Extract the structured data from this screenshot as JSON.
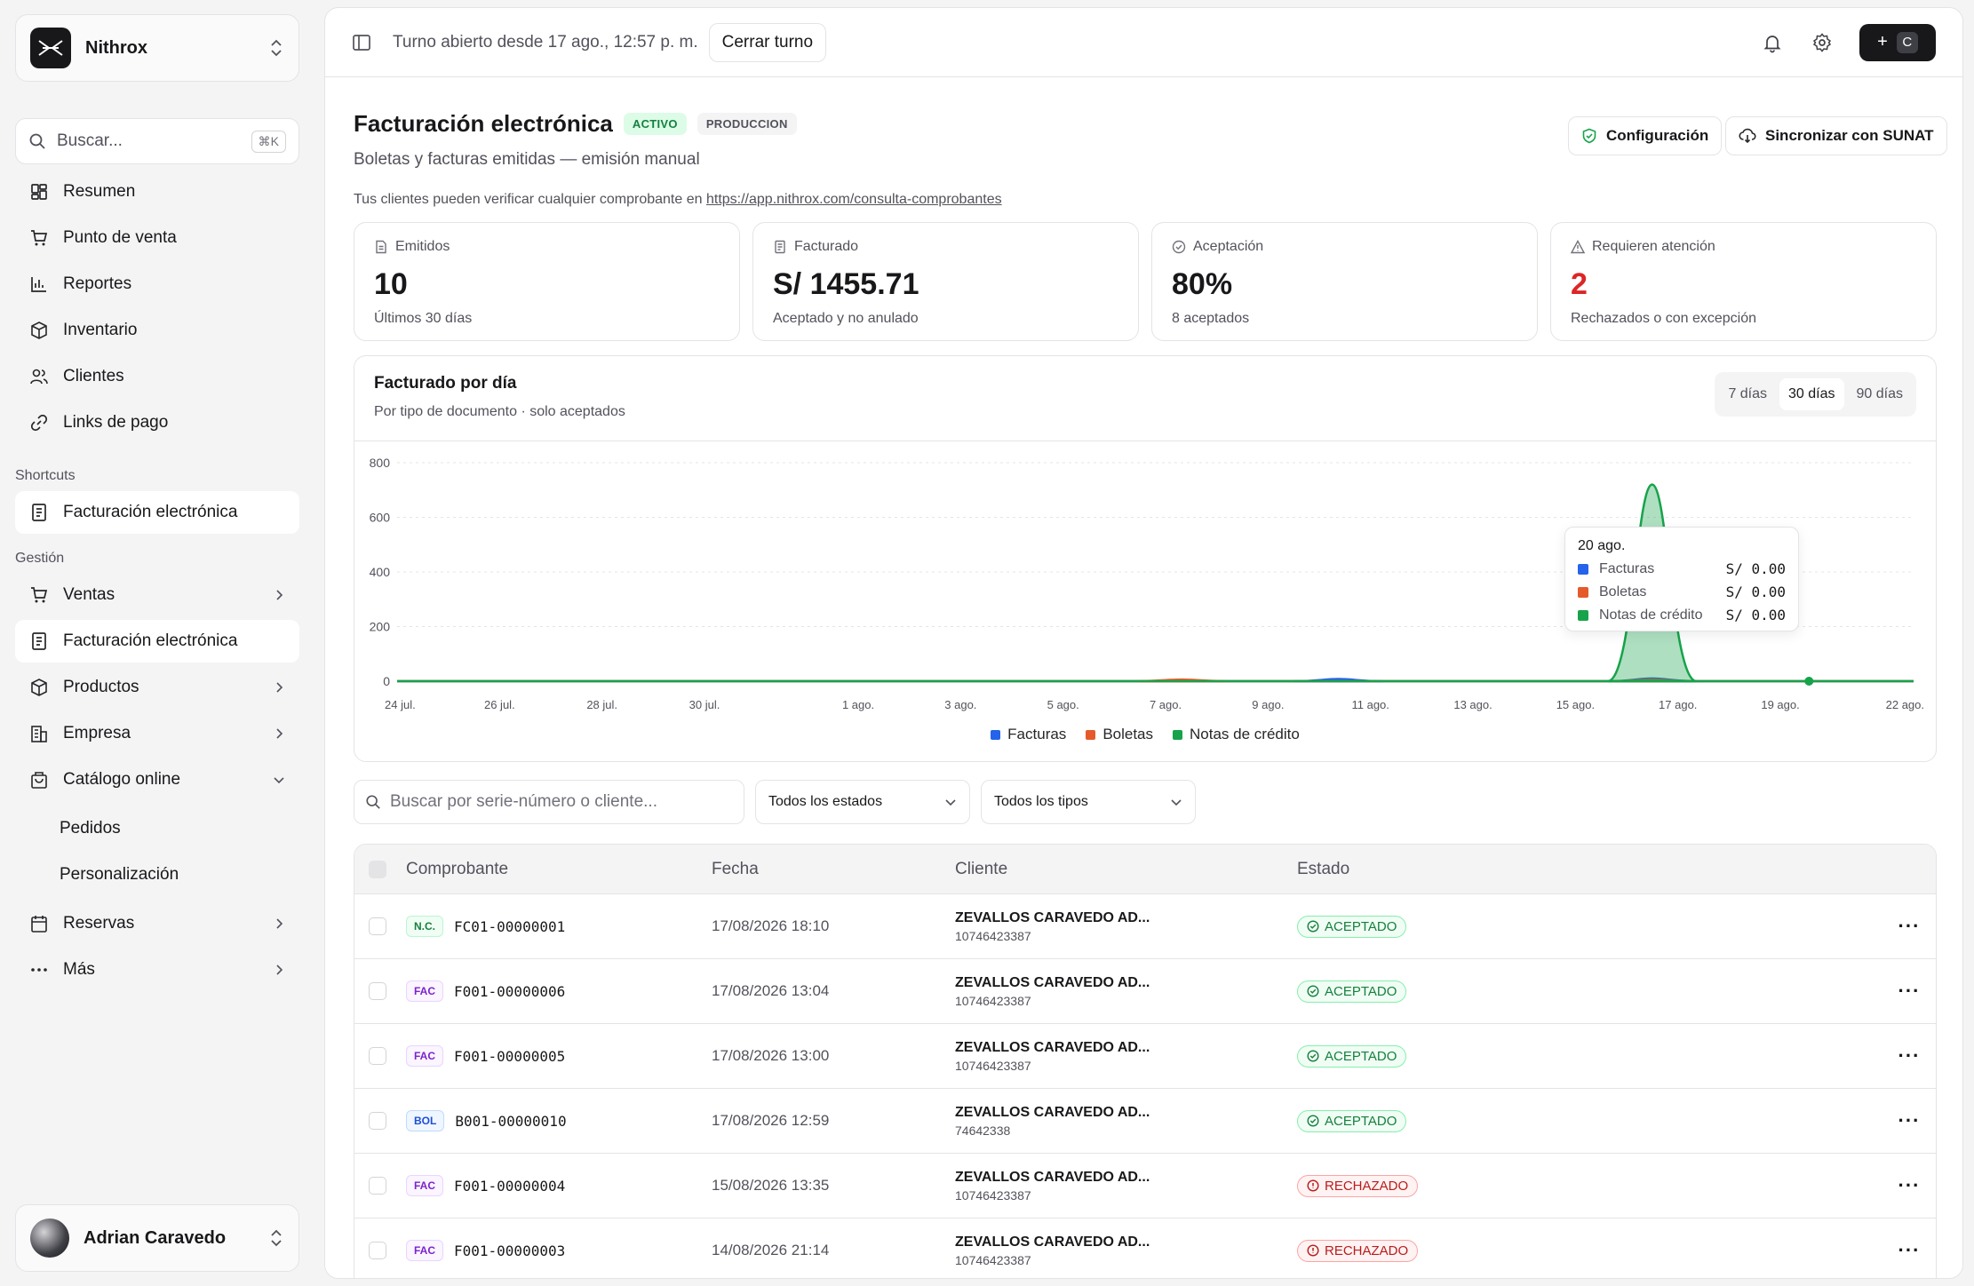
{
  "workspace": {
    "name": "Nithrox"
  },
  "search": {
    "placeholder": "Buscar...",
    "shortcut": "⌘K"
  },
  "nav": {
    "main": [
      {
        "label": "Resumen",
        "icon": "dashboard-icon"
      },
      {
        "label": "Punto de venta",
        "icon": "cart-icon"
      },
      {
        "label": "Reportes",
        "icon": "chart-icon"
      },
      {
        "label": "Inventario",
        "icon": "box-icon"
      },
      {
        "label": "Clientes",
        "icon": "users-icon"
      },
      {
        "label": "Links de pago",
        "icon": "link-icon"
      }
    ],
    "shortcuts_label": "Shortcuts",
    "shortcuts": [
      {
        "label": "Facturación electrónica",
        "icon": "receipt-icon"
      }
    ],
    "gestion_label": "Gestión",
    "gestion": [
      {
        "label": "Ventas",
        "icon": "cart-icon"
      },
      {
        "label": "Facturación electrónica",
        "icon": "receipt-icon"
      },
      {
        "label": "Productos",
        "icon": "box-icon"
      },
      {
        "label": "Empresa",
        "icon": "building-icon"
      },
      {
        "label": "Catálogo online",
        "icon": "bag-icon"
      },
      {
        "label": "Pedidos"
      },
      {
        "label": "Personalización"
      },
      {
        "label": "Reservas",
        "icon": "calendar-icon"
      },
      {
        "label": "Más",
        "icon": "dots-icon"
      }
    ]
  },
  "user": {
    "name": "Adrian Caravedo"
  },
  "topbar": {
    "shift_status": "Turno abierto desde 17 ago., 12:57 p. m.",
    "close_shift": "Cerrar turno",
    "quick_plus": "+",
    "quick_key": "C"
  },
  "header": {
    "title": "Facturación electrónica",
    "status_badge": "ACTIVO",
    "env_badge": "PRODUCCION",
    "subtitle": "Boletas y facturas emitidas — emisión manual",
    "verify_text": "Tus clientes pueden verificar cualquier comprobante en",
    "verify_url": "https://app.nithrox.com/consulta-comprobantes",
    "config_button": "Configuración",
    "sync_button": "Sincronizar con SUNAT"
  },
  "kpis": [
    {
      "label": "Emitidos",
      "value": "10",
      "sub": "Últimos 30 días",
      "icon": "document-icon"
    },
    {
      "label": "Facturado",
      "value": "S/ 1455.71",
      "sub": "Aceptado y no anulado",
      "icon": "receipt-icon"
    },
    {
      "label": "Aceptación",
      "value": "80%",
      "sub": "8 aceptados",
      "icon": "check-circle-icon"
    },
    {
      "label": "Requieren atención",
      "value": "2",
      "sub": "Rechazados o con excepción",
      "icon": "warning-icon"
    }
  ],
  "chart": {
    "title": "Facturado por día",
    "subtitle": "Por tipo de documento · solo aceptados",
    "ranges": [
      "7 días",
      "30 días",
      "90 días"
    ],
    "active_range": "30 días",
    "tooltip": {
      "date": "20 ago.",
      "rows": [
        {
          "name": "Facturas",
          "value": "S/ 0.00"
        },
        {
          "name": "Boletas",
          "value": "S/ 0.00"
        },
        {
          "name": "Notas de crédito",
          "value": "S/ 0.00"
        }
      ]
    }
  },
  "chart_data": {
    "type": "area",
    "title": "Facturado por día",
    "x_ticks": [
      "24 jul.",
      "26 jul.",
      "28 jul.",
      "30 jul.",
      "1 ago.",
      "3 ago.",
      "5 ago.",
      "7 ago.",
      "9 ago.",
      "11 ago.",
      "13 ago.",
      "15 ago.",
      "17 ago.",
      "19 ago.",
      "22 ago."
    ],
    "y_ticks": [
      0,
      200,
      400,
      600,
      800
    ],
    "ylim": [
      0,
      800
    ],
    "days_range": [
      "2026-07-24",
      "2026-08-22"
    ],
    "series": [
      {
        "name": "Facturas",
        "color": "#2563eb",
        "points": [
          [
            "2026-08-11",
            8
          ],
          [
            "2026-08-17",
            10
          ]
        ]
      },
      {
        "name": "Boletas",
        "color": "#e55a2b",
        "points": [
          [
            "2026-08-08",
            6
          ],
          [
            "2026-08-17",
            5
          ]
        ]
      },
      {
        "name": "Notas de crédito",
        "color": "#16a34a",
        "points": [
          [
            "2026-08-17",
            720
          ]
        ]
      }
    ],
    "legend": "bottom",
    "grid": true
  },
  "filters": {
    "search_placeholder": "Buscar por serie-número o cliente...",
    "states": "Todos los estados",
    "types": "Todos los tipos"
  },
  "table": {
    "headers": [
      "Comprobante",
      "Fecha",
      "Cliente",
      "Estado"
    ],
    "rows": [
      {
        "type": "N.C.",
        "kind": "nc",
        "number": "FC01-00000001",
        "date": "17/08/2026 18:10",
        "client": "ZEVALLOS CARAVEDO AD...",
        "doc": "10746423387",
        "state": "ACEPTADO",
        "ok": true
      },
      {
        "type": "FAC",
        "kind": "fac",
        "number": "F001-00000006",
        "date": "17/08/2026 13:04",
        "client": "ZEVALLOS CARAVEDO AD...",
        "doc": "10746423387",
        "state": "ACEPTADO",
        "ok": true
      },
      {
        "type": "FAC",
        "kind": "fac",
        "number": "F001-00000005",
        "date": "17/08/2026 13:00",
        "client": "ZEVALLOS CARAVEDO AD...",
        "doc": "10746423387",
        "state": "ACEPTADO",
        "ok": true
      },
      {
        "type": "BOL",
        "kind": "bol",
        "number": "B001-00000010",
        "date": "17/08/2026 12:59",
        "client": "ZEVALLOS CARAVEDO AD...",
        "doc": "74642338",
        "state": "ACEPTADO",
        "ok": true
      },
      {
        "type": "FAC",
        "kind": "fac",
        "number": "F001-00000004",
        "date": "15/08/2026 13:35",
        "client": "ZEVALLOS CARAVEDO AD...",
        "doc": "10746423387",
        "state": "RECHAZADO",
        "ok": false
      },
      {
        "type": "FAC",
        "kind": "fac",
        "number": "F001-00000003",
        "date": "14/08/2026 21:14",
        "client": "ZEVALLOS CARAVEDO AD...",
        "doc": "10746423387",
        "state": "RECHAZADO",
        "ok": false
      }
    ]
  }
}
